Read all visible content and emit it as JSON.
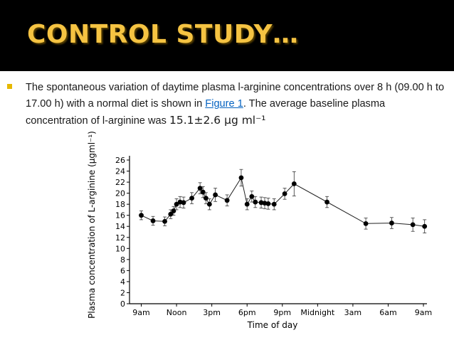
{
  "slide": {
    "title": "CONTROL STUDY…",
    "bullet": {
      "text_before_link": "The spontaneous variation of daytime plasma l-arginine concentrations over 8 h (09.00 h to 17.00 h) with a normal diet is shown in ",
      "link_text": "Figure 1",
      "text_after_link": ". The average baseline plasma concentration of l-arginine was ",
      "value_text": "15.1±2.6 μg ml⁻¹"
    }
  },
  "colors": {
    "title": "#f5c342",
    "title_bar": "#000000",
    "bullet": "#e6b800",
    "link": "#0563c1"
  },
  "chart_data": {
    "type": "scatter",
    "ylabel": "Plasma concentration of L-arginine (μgml⁻¹)",
    "xlabel": "Time of day",
    "ylim": [
      0,
      26
    ],
    "yticks": [
      0,
      2,
      4,
      6,
      8,
      10,
      12,
      14,
      16,
      18,
      20,
      22,
      24,
      26
    ],
    "xlim": [
      8.0,
      33.3
    ],
    "xticks": [
      {
        "x": 9,
        "label": "9am"
      },
      {
        "x": 12,
        "label": "Noon"
      },
      {
        "x": 15,
        "label": "3pm"
      },
      {
        "x": 18,
        "label": "6pm"
      },
      {
        "x": 21,
        "label": "9pm"
      },
      {
        "x": 24,
        "label": "Midnight"
      },
      {
        "x": 27,
        "label": "3am"
      },
      {
        "x": 30,
        "label": "6am"
      },
      {
        "x": 33,
        "label": "9am"
      }
    ],
    "points": [
      {
        "x": 9.0,
        "y": 16.0,
        "err": 0.8
      },
      {
        "x": 10.0,
        "y": 15.0,
        "err": 0.8
      },
      {
        "x": 11.0,
        "y": 14.9,
        "err": 0.8
      },
      {
        "x": 11.5,
        "y": 16.2,
        "err": 0.8
      },
      {
        "x": 11.75,
        "y": 16.8,
        "err": 0.8
      },
      {
        "x": 12.0,
        "y": 18.0,
        "err": 1.0
      },
      {
        "x": 12.3,
        "y": 18.4,
        "err": 1.0
      },
      {
        "x": 12.6,
        "y": 18.3,
        "err": 1.0
      },
      {
        "x": 13.3,
        "y": 19.1,
        "err": 1.0
      },
      {
        "x": 14.0,
        "y": 20.9,
        "err": 1.0
      },
      {
        "x": 14.25,
        "y": 20.2,
        "err": 1.0
      },
      {
        "x": 14.5,
        "y": 19.1,
        "err": 1.0
      },
      {
        "x": 14.8,
        "y": 18.0,
        "err": 1.0
      },
      {
        "x": 15.3,
        "y": 19.7,
        "err": 1.2
      },
      {
        "x": 16.3,
        "y": 18.7,
        "err": 1.0
      },
      {
        "x": 17.5,
        "y": 22.8,
        "err": 1.5
      },
      {
        "x": 18.0,
        "y": 18.0,
        "err": 1.0
      },
      {
        "x": 18.4,
        "y": 19.4,
        "err": 1.0
      },
      {
        "x": 18.7,
        "y": 18.4,
        "err": 1.0
      },
      {
        "x": 19.2,
        "y": 18.3,
        "err": 1.0
      },
      {
        "x": 19.5,
        "y": 18.2,
        "err": 1.0
      },
      {
        "x": 19.8,
        "y": 18.1,
        "err": 1.0
      },
      {
        "x": 20.3,
        "y": 18.0,
        "err": 1.0
      },
      {
        "x": 21.2,
        "y": 19.9,
        "err": 1.0
      },
      {
        "x": 22.0,
        "y": 21.7,
        "err": 2.2
      },
      {
        "x": 24.8,
        "y": 18.4,
        "err": 1.0
      },
      {
        "x": 28.1,
        "y": 14.5,
        "err": 1.0
      },
      {
        "x": 30.3,
        "y": 14.6,
        "err": 1.0
      },
      {
        "x": 32.1,
        "y": 14.3,
        "err": 1.2
      },
      {
        "x": 33.1,
        "y": 14.0,
        "err": 1.2
      }
    ]
  }
}
